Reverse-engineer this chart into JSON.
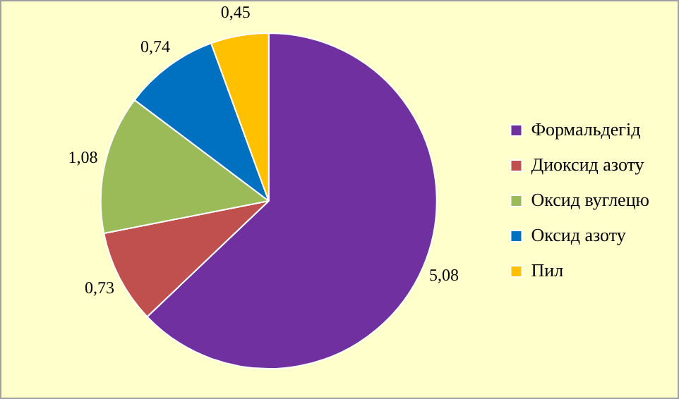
{
  "chart_data": {
    "type": "pie",
    "categories": [
      "Формальдегід",
      "Диоксид азоту",
      "Оксид вуглецю",
      "Оксид азоту",
      "Пил"
    ],
    "values": [
      5.08,
      0.73,
      1.08,
      0.74,
      0.45
    ],
    "value_labels": [
      "5,08",
      "0,73",
      "1,08",
      "0,74",
      "0,45"
    ],
    "colors": [
      "#7030a0",
      "#c0504d",
      "#9bbb59",
      "#0070c0",
      "#ffc000"
    ],
    "legend": "right"
  }
}
